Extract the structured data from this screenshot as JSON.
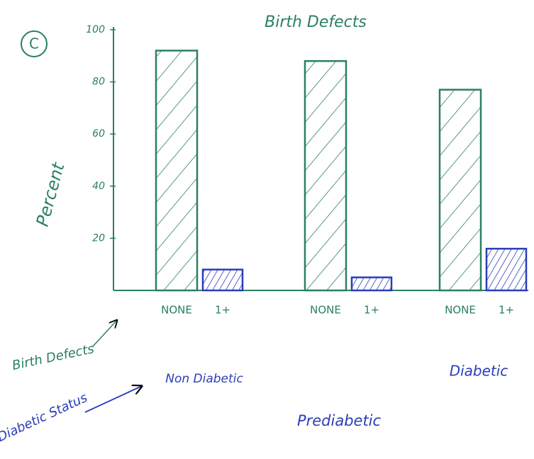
{
  "chart_data": {
    "type": "bar",
    "title": "Birth Defects",
    "panel_label": "C",
    "y_label": "Percent",
    "categories": [
      "Non Diabetic",
      "Prediabetic",
      "Diabetic"
    ],
    "series": [
      {
        "name": "NONE",
        "color": "#2a8060",
        "values": [
          92,
          88,
          77
        ]
      },
      {
        "name": "1+",
        "color": "#2b3db8",
        "values": [
          8,
          5,
          16
        ]
      }
    ],
    "ylim": [
      0,
      100
    ],
    "yticks": [
      20,
      40,
      60,
      80,
      100
    ],
    "annotations": [
      "Birth Defects",
      "Diabetic Status"
    ]
  }
}
